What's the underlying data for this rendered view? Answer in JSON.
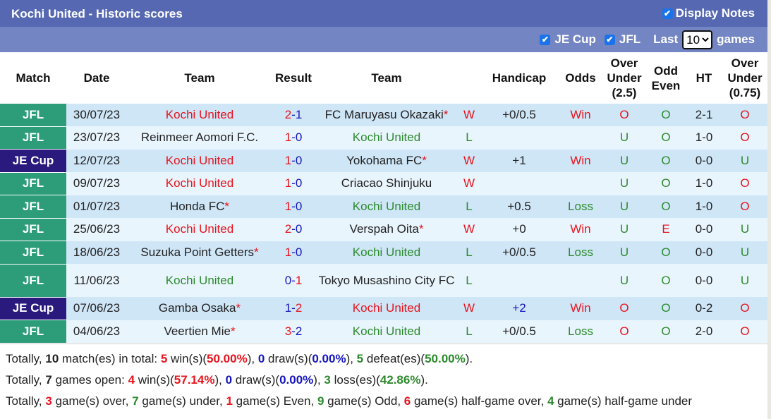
{
  "header": {
    "title": "Kochi United - Historic scores",
    "display_notes": "Display Notes",
    "filter_je_cup": "JE Cup",
    "filter_jfl": "JFL",
    "last_label": "Last",
    "last_value": "10",
    "games_label": "games"
  },
  "columns": [
    "Match",
    "Date",
    "Team",
    "Result",
    "Team",
    "",
    "Handicap",
    "Odds",
    "Over Under (2.5)",
    "Odd Even",
    "HT",
    "Over Under (0.75)"
  ],
  "colors": {
    "red": "#e8131c",
    "green": "#2b8a2b",
    "blue": "#1515c0",
    "jfl": "#2c9c79",
    "je_cup": "#2a1a7e",
    "title_bar": "#5568b1",
    "filter_bar": "#7385c3"
  },
  "rows": [
    {
      "match": "JFL",
      "date": "30/07/23",
      "home": "Kochi United",
      "home_color": "red",
      "home_star": false,
      "hs": "2",
      "as": "1",
      "away": "FC Maruyasu Okazaki",
      "away_color": "dark",
      "away_star": true,
      "wl": "W",
      "handicap": "+0/0.5",
      "hc_color": "dark",
      "odds": "Win",
      "ou": "O",
      "oe": "O",
      "ht": "2-1",
      "ou075": "O"
    },
    {
      "match": "JFL",
      "date": "23/07/23",
      "home": "Reinmeer Aomori F.C.",
      "home_color": "dark",
      "home_star": false,
      "hs": "1",
      "as": "0",
      "away": "Kochi United",
      "away_color": "green",
      "away_star": false,
      "wl": "L",
      "handicap": "",
      "hc_color": "dark",
      "odds": "",
      "ou": "U",
      "oe": "O",
      "ht": "1-0",
      "ou075": "O"
    },
    {
      "match": "JE Cup",
      "date": "12/07/23",
      "home": "Kochi United",
      "home_color": "red",
      "home_star": false,
      "hs": "1",
      "as": "0",
      "away": "Yokohama FC",
      "away_color": "dark",
      "away_star": true,
      "wl": "W",
      "handicap": "+1",
      "hc_color": "dark",
      "odds": "Win",
      "ou": "U",
      "oe": "O",
      "ht": "0-0",
      "ou075": "U"
    },
    {
      "match": "JFL",
      "date": "09/07/23",
      "home": "Kochi United",
      "home_color": "red",
      "home_star": false,
      "hs": "1",
      "as": "0",
      "away": "Criacao Shinjuku",
      "away_color": "dark",
      "away_star": false,
      "wl": "W",
      "handicap": "",
      "hc_color": "dark",
      "odds": "",
      "ou": "U",
      "oe": "O",
      "ht": "1-0",
      "ou075": "O"
    },
    {
      "match": "JFL",
      "date": "01/07/23",
      "home": "Honda FC",
      "home_color": "dark",
      "home_star": true,
      "hs": "1",
      "as": "0",
      "away": "Kochi United",
      "away_color": "green",
      "away_star": false,
      "wl": "L",
      "handicap": "+0.5",
      "hc_color": "dark",
      "odds": "Loss",
      "ou": "U",
      "oe": "O",
      "ht": "1-0",
      "ou075": "O"
    },
    {
      "match": "JFL",
      "date": "25/06/23",
      "home": "Kochi United",
      "home_color": "red",
      "home_star": false,
      "hs": "2",
      "as": "0",
      "away": "Verspah Oita",
      "away_color": "dark",
      "away_star": true,
      "wl": "W",
      "handicap": "+0",
      "hc_color": "dark",
      "odds": "Win",
      "ou": "U",
      "oe": "E",
      "ht": "0-0",
      "ou075": "U"
    },
    {
      "match": "JFL",
      "date": "18/06/23",
      "home": "Suzuka Point Getters",
      "home_color": "dark",
      "home_star": true,
      "hs": "1",
      "as": "0",
      "away": "Kochi United",
      "away_color": "green",
      "away_star": false,
      "wl": "L",
      "handicap": "+0/0.5",
      "hc_color": "dark",
      "odds": "Loss",
      "ou": "U",
      "oe": "O",
      "ht": "0-0",
      "ou075": "U"
    },
    {
      "match": "JFL",
      "date": "11/06/23",
      "home": "Kochi United",
      "home_color": "green",
      "home_star": false,
      "hs": "0",
      "as": "1",
      "away": "Tokyo Musashino City FC",
      "away_color": "dark",
      "away_star": false,
      "wl": "L",
      "handicap": "",
      "hc_color": "dark",
      "odds": "",
      "ou": "U",
      "oe": "O",
      "ht": "0-0",
      "ou075": "U"
    },
    {
      "match": "JE Cup",
      "date": "07/06/23",
      "home": "Gamba Osaka",
      "home_color": "dark",
      "home_star": true,
      "hs": "1",
      "as": "2",
      "away": "Kochi United",
      "away_color": "red",
      "away_star": false,
      "wl": "W",
      "handicap": "+2",
      "hc_color": "blue",
      "odds": "Win",
      "ou": "O",
      "oe": "O",
      "ht": "0-2",
      "ou075": "O"
    },
    {
      "match": "JFL",
      "date": "04/06/23",
      "home": "Veertien Mie",
      "home_color": "dark",
      "home_star": true,
      "hs": "3",
      "as": "2",
      "away": "Kochi United",
      "away_color": "green",
      "away_star": false,
      "wl": "L",
      "handicap": "+0/0.5",
      "hc_color": "dark",
      "odds": "Loss",
      "ou": "O",
      "oe": "O",
      "ht": "2-0",
      "ou075": "O"
    }
  ],
  "summary": [
    [
      [
        "Totally, ",
        ""
      ],
      [
        "10",
        "bold"
      ],
      [
        " match(es) in total: ",
        ""
      ],
      [
        "5",
        "red"
      ],
      [
        " win(s)(",
        ""
      ],
      [
        "50.00%",
        "red"
      ],
      [
        "), ",
        ""
      ],
      [
        "0",
        "blue"
      ],
      [
        " draw(s)(",
        ""
      ],
      [
        "0.00%",
        "blue"
      ],
      [
        "), ",
        ""
      ],
      [
        "5",
        "green"
      ],
      [
        " defeat(es)(",
        ""
      ],
      [
        "50.00%",
        "green"
      ],
      [
        ").",
        ""
      ]
    ],
    [
      [
        "Totally, ",
        ""
      ],
      [
        "7",
        "bold"
      ],
      [
        " games open: ",
        ""
      ],
      [
        "4",
        "red"
      ],
      [
        " win(s)(",
        ""
      ],
      [
        "57.14%",
        "red"
      ],
      [
        "), ",
        ""
      ],
      [
        "0",
        "blue"
      ],
      [
        " draw(s)(",
        ""
      ],
      [
        "0.00%",
        "blue"
      ],
      [
        "), ",
        ""
      ],
      [
        "3",
        "green"
      ],
      [
        " loss(es)(",
        ""
      ],
      [
        "42.86%",
        "green"
      ],
      [
        ").",
        ""
      ]
    ],
    [
      [
        "Totally, ",
        ""
      ],
      [
        "3",
        "red"
      ],
      [
        " game(s) over, ",
        ""
      ],
      [
        "7",
        "green"
      ],
      [
        " game(s) under, ",
        ""
      ],
      [
        "1",
        "red"
      ],
      [
        " game(s) Even, ",
        ""
      ],
      [
        "9",
        "green"
      ],
      [
        " game(s) Odd, ",
        ""
      ],
      [
        "6",
        "red"
      ],
      [
        " game(s) half-game over, ",
        ""
      ],
      [
        "4",
        "green"
      ],
      [
        " game(s) half-game under",
        ""
      ]
    ]
  ]
}
